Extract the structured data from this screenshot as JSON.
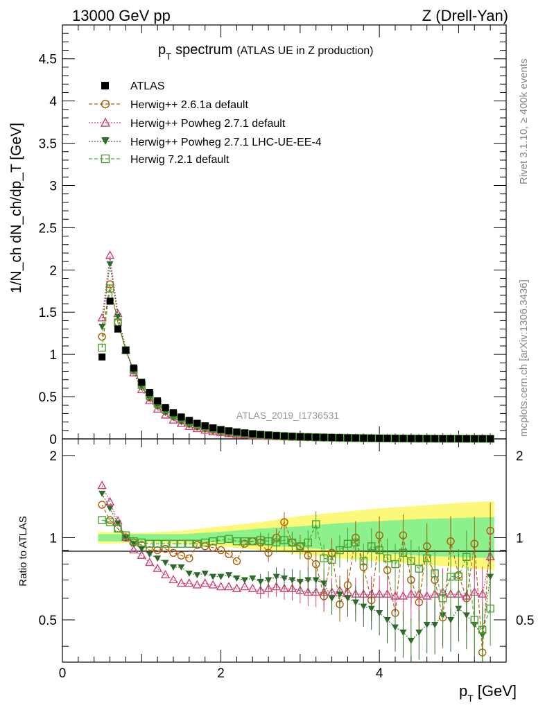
{
  "header": {
    "left": "13000 GeV pp",
    "right": "Z (Drell-Yan)"
  },
  "side_text": {
    "rivet": "Rivet 3.1.10, ≥ 400k events",
    "mcplots": "mcplots.cern.ch [arXiv:1306.3436]"
  },
  "main": {
    "title_p": "p",
    "title_sub": "T",
    "title_rest": "spectrum",
    "title_small": "(ATLAS UE in Z production)",
    "watermark": "ATLAS_2019_I1736531",
    "ylabel": "1/N_ch dN_ch/dp_T [GeV]"
  },
  "legend": {
    "atlas": "ATLAS",
    "h261": "Herwig++ 2.6.1a default",
    "pow271": "Herwig++ Powheg 2.7.1 default",
    "pow271ue": "Herwig++ Powheg 2.7.1 LHC-UE-EE-4",
    "h721": "Herwig 7.2.1 default"
  },
  "ratio": {
    "ylabel": "Ratio to ATLAS"
  },
  "xaxis": {
    "label_p": "p",
    "label_sub": "T",
    "label_unit": "[GeV]"
  },
  "colors": {
    "data": "#000000",
    "herwig261": "#b05a00",
    "powheg": "#d0427a",
    "powheg_ue": "#2e6a2a",
    "herwig721": "#48a030",
    "band_yellow": "#fcf87a",
    "band_green": "#8cf08c"
  },
  "chart_data": [
    {
      "type": "scatter",
      "title": "p_T spectrum (ATLAS UE in Z production)",
      "xlabel": "p_T [GeV]",
      "ylabel": "1/N_ch dN_ch/dp_T [GeV]",
      "xlim": [
        0,
        5.6
      ],
      "ylim": [
        0,
        4.9
      ],
      "yticks": [
        0,
        0.5,
        1,
        1.5,
        2,
        2.5,
        3,
        3.5,
        4,
        4.5
      ],
      "ytick_labels": [
        "0",
        "0.5",
        "1",
        "1.5",
        "2",
        "2.5",
        "3",
        "3.5",
        "4",
        "4.5"
      ],
      "x": [
        0.5,
        0.6,
        0.7,
        0.8,
        0.9,
        1.0,
        1.1,
        1.2,
        1.3,
        1.4,
        1.5,
        1.6,
        1.7,
        1.8,
        1.9,
        2.0,
        2.1,
        2.2,
        2.3,
        2.4,
        2.5,
        2.6,
        2.7,
        2.8,
        2.9,
        3.0,
        3.1,
        3.2,
        3.3,
        3.4,
        3.5,
        3.6,
        3.7,
        3.8,
        3.9,
        4.0,
        4.1,
        4.2,
        4.3,
        4.4,
        4.5,
        4.6,
        4.7,
        4.8,
        4.9,
        5.0,
        5.1,
        5.2,
        5.3,
        5.4
      ],
      "series": [
        {
          "name": "ATLAS",
          "values": [
            0.97,
            1.63,
            1.3,
            1.05,
            0.84,
            0.67,
            0.55,
            0.45,
            0.37,
            0.31,
            0.26,
            0.22,
            0.185,
            0.155,
            0.13,
            0.11,
            0.095,
            0.081,
            0.07,
            0.06,
            0.052,
            0.045,
            0.039,
            0.034,
            0.03,
            0.026,
            0.023,
            0.02,
            0.018,
            0.016,
            0.014,
            0.012,
            0.011,
            0.0095,
            0.0085,
            0.0075,
            0.0067,
            0.006,
            0.0054,
            0.0048,
            0.0043,
            0.0039,
            0.0035,
            0.0031,
            0.0028,
            0.0025,
            0.0023,
            0.0021,
            0.0019,
            0.0017
          ]
        },
        {
          "name": "Herwig++ 2.6.1a default",
          "values": [
            1.21,
            1.83,
            1.38,
            1.05,
            0.81,
            0.63,
            0.49,
            0.4,
            0.33,
            0.27,
            0.22,
            0.18,
            0.15,
            0.125,
            0.105,
            0.088,
            0.074,
            0.062,
            0.053,
            0.046,
            0.04,
            0.034,
            0.03,
            0.026,
            0.023,
            0.02,
            0.018,
            0.016,
            0.014,
            0.012,
            0.011,
            0.0095,
            0.0085,
            0.0075,
            0.0065,
            0.006,
            0.0053,
            0.0047,
            0.0042,
            0.0038,
            0.0034,
            0.003,
            0.0027,
            0.0024,
            0.0022,
            0.0019,
            0.0017,
            0.0015,
            0.0014,
            0.0012
          ]
        },
        {
          "name": "Herwig++ Powheg 2.7.1 default",
          "values": [
            1.43,
            2.17,
            1.48,
            1.05,
            0.78,
            0.58,
            0.45,
            0.35,
            0.28,
            0.22,
            0.18,
            0.145,
            0.12,
            0.1,
            0.083,
            0.07,
            0.059,
            0.05,
            0.043,
            0.037,
            0.032,
            0.027,
            0.024,
            0.021,
            0.018,
            0.016,
            0.014,
            0.012,
            0.011,
            0.0095,
            0.0085,
            0.0075,
            0.0067,
            0.006,
            0.0053,
            0.0047,
            0.0042,
            0.0037,
            0.0033,
            0.003,
            0.0027,
            0.0024,
            0.0021,
            0.0019,
            0.0017,
            0.0015,
            0.0014,
            0.0012,
            0.0011,
            0.001
          ]
        },
        {
          "name": "Herwig++ Powheg 2.7.1 LHC-UE-EE-4",
          "values": [
            1.33,
            2.07,
            1.45,
            1.06,
            0.8,
            0.61,
            0.48,
            0.38,
            0.31,
            0.25,
            0.2,
            0.165,
            0.135,
            0.113,
            0.094,
            0.079,
            0.067,
            0.057,
            0.049,
            0.042,
            0.036,
            0.031,
            0.027,
            0.024,
            0.021,
            0.018,
            0.016,
            0.014,
            0.012,
            0.011,
            0.0095,
            0.0085,
            0.0075,
            0.0067,
            0.006,
            0.0053,
            0.0047,
            0.0042,
            0.0037,
            0.0033,
            0.003,
            0.0027,
            0.0024,
            0.0021,
            0.0019,
            0.0017,
            0.0015,
            0.0014,
            0.0012,
            0.0011
          ]
        },
        {
          "name": "Herwig 7.2.1 default",
          "values": [
            1.08,
            1.78,
            1.38,
            1.05,
            0.82,
            0.64,
            0.52,
            0.42,
            0.35,
            0.29,
            0.245,
            0.205,
            0.175,
            0.148,
            0.125,
            0.106,
            0.091,
            0.078,
            0.067,
            0.058,
            0.05,
            0.044,
            0.038,
            0.033,
            0.029,
            0.025,
            0.022,
            0.019,
            0.017,
            0.015,
            0.013,
            0.0115,
            0.01,
            0.009,
            0.008,
            0.007,
            0.0062,
            0.0055,
            0.0049,
            0.0044,
            0.0039,
            0.0035,
            0.0031,
            0.0028,
            0.0025,
            0.0022,
            0.002,
            0.0018,
            0.0016,
            0.0014
          ]
        }
      ]
    },
    {
      "type": "scatter",
      "title": "Ratio to ATLAS",
      "xlabel": "p_T [GeV]",
      "ylabel": "Ratio to ATLAS",
      "xlim": [
        0,
        5.6
      ],
      "ylim": [
        0.35,
        2.3
      ],
      "yticks": [
        0.5,
        1,
        2
      ],
      "ytick_labels": [
        "0.5",
        "1",
        "2"
      ],
      "xticks": [
        0,
        2,
        4
      ],
      "xtick_labels": [
        "0",
        "2",
        "4"
      ],
      "x": [
        0.5,
        0.6,
        0.7,
        0.8,
        0.9,
        1.0,
        1.1,
        1.2,
        1.3,
        1.4,
        1.5,
        1.6,
        1.7,
        1.8,
        1.9,
        2.0,
        2.1,
        2.2,
        2.3,
        2.4,
        2.5,
        2.6,
        2.7,
        2.8,
        2.9,
        3.0,
        3.1,
        3.2,
        3.3,
        3.4,
        3.5,
        3.6,
        3.7,
        3.8,
        3.9,
        4.0,
        4.1,
        4.2,
        4.3,
        4.4,
        4.5,
        4.6,
        4.7,
        4.8,
        4.9,
        5.0,
        5.1,
        5.2,
        5.3,
        5.4
      ],
      "band_x": [
        0.45,
        1.0,
        1.5,
        2.0,
        2.5,
        3.0,
        3.5,
        4.0,
        4.5,
        5.0,
        5.45
      ],
      "band_yellow_low": [
        0.95,
        0.96,
        0.95,
        0.93,
        0.9,
        0.87,
        0.84,
        0.82,
        0.8,
        0.78,
        0.76
      ],
      "band_yellow_high": [
        1.05,
        1.04,
        1.06,
        1.1,
        1.14,
        1.2,
        1.24,
        1.28,
        1.31,
        1.34,
        1.36
      ],
      "band_green_low": [
        0.97,
        0.97,
        0.97,
        0.96,
        0.94,
        0.92,
        0.9,
        0.88,
        0.86,
        0.85,
        0.84
      ],
      "band_green_high": [
        1.03,
        1.03,
        1.03,
        1.05,
        1.08,
        1.1,
        1.13,
        1.15,
        1.17,
        1.18,
        1.19
      ],
      "series": [
        {
          "name": "Herwig++ 2.6.1a default",
          "values": [
            1.32,
            1.16,
            1.08,
            1.0,
            0.96,
            0.94,
            0.9,
            0.9,
            0.91,
            0.88,
            0.86,
            0.84,
            0.94,
            0.93,
            0.92,
            0.9,
            0.87,
            0.82,
            0.95,
            0.97,
            0.96,
            0.88,
            1.0,
            1.14,
            0.96,
            0.93,
            0.86,
            0.8,
            0.61,
            0.88,
            0.57,
            0.67,
            1.0,
            0.78,
            0.59,
            1.02,
            0.76,
            0.53,
            1.02,
            0.7,
            0.58,
            0.93,
            0.7,
            0.51,
            0.97,
            0.73,
            0.6,
            0.95,
            0.38,
            1.06
          ]
        },
        {
          "name": "Herwig++ Powheg 2.7.1 default",
          "values": [
            1.55,
            1.35,
            1.15,
            1.0,
            0.9,
            0.86,
            0.81,
            0.77,
            0.73,
            0.7,
            0.68,
            0.68,
            0.67,
            0.68,
            0.67,
            0.66,
            0.66,
            0.65,
            0.66,
            0.65,
            0.64,
            0.65,
            0.66,
            0.65,
            0.65,
            0.64,
            0.63,
            0.63,
            0.63,
            0.63,
            0.64,
            0.63,
            0.62,
            0.62,
            0.62,
            0.62,
            0.62,
            0.61,
            0.61,
            0.62,
            0.62,
            0.61,
            0.62,
            0.63,
            0.62,
            0.62,
            0.61,
            0.63,
            0.62,
            0.85
          ]
        },
        {
          "name": "Herwig++ Powheg 2.7.1 LHC-UE-EE-4",
          "values": [
            1.45,
            1.28,
            1.13,
            1.0,
            0.95,
            0.91,
            0.87,
            0.84,
            0.81,
            0.78,
            0.78,
            0.74,
            0.73,
            0.74,
            0.72,
            0.72,
            0.73,
            0.71,
            0.7,
            0.71,
            0.69,
            0.7,
            0.72,
            0.71,
            0.7,
            0.69,
            0.7,
            0.7,
            0.68,
            0.6,
            0.62,
            0.6,
            0.58,
            0.56,
            0.55,
            0.53,
            0.5,
            0.47,
            0.45,
            0.42,
            0.45,
            0.48,
            0.48,
            0.52,
            0.5,
            0.55,
            0.52,
            0.48,
            0.44,
            0.72
          ]
        },
        {
          "name": "Herwig 7.2.1 default",
          "values": [
            1.16,
            1.14,
            1.08,
            1.02,
            0.97,
            0.96,
            0.95,
            0.95,
            0.95,
            0.95,
            0.95,
            0.95,
            0.95,
            0.96,
            0.97,
            0.98,
            0.99,
            0.97,
            0.97,
            0.97,
            0.98,
            0.97,
            0.96,
            0.98,
            0.96,
            0.93,
            0.96,
            1.12,
            0.84,
            0.83,
            0.9,
            0.95,
            0.96,
            0.82,
            0.93,
            0.9,
            0.84,
            0.8,
            0.88,
            0.82,
            0.77,
            0.84,
            0.74,
            0.6,
            0.72,
            0.72,
            0.85,
            0.5,
            0.46,
            0.55
          ]
        }
      ]
    }
  ]
}
